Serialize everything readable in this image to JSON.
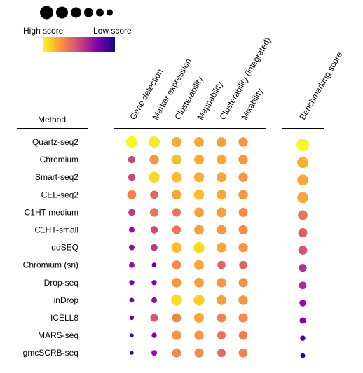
{
  "chart_data": {
    "type": "dot-matrix",
    "row_header": "Method",
    "methods": [
      "Quartz-seq2",
      "Chromium",
      "Smart-seq2",
      "CEL-seq2",
      "C1HT-medium",
      "C1HT-small",
      "ddSEQ",
      "Chromium (sn)",
      "Drop-seq",
      "inDrop",
      "ICELL8",
      "MARS-seq",
      "gmcSCRB-seq"
    ],
    "metrics": [
      "Gene detection",
      "Marker expression",
      "Clusterability",
      "Mappability",
      "Clusterability (integrated)",
      "Mixability"
    ],
    "summary_metric": "Benchmarking score",
    "scale": {
      "min": 0,
      "max": 1,
      "note": "higher value = higher score (larger, yellower dot)"
    },
    "scores": [
      [
        1.0,
        0.97,
        0.8,
        0.8,
        0.78,
        0.75
      ],
      [
        0.5,
        0.75,
        0.85,
        0.8,
        0.8,
        0.75
      ],
      [
        0.5,
        0.93,
        0.85,
        0.82,
        0.8,
        0.75
      ],
      [
        0.7,
        0.6,
        0.8,
        0.85,
        0.8,
        0.75
      ],
      [
        0.45,
        0.65,
        0.65,
        0.78,
        0.78,
        0.72
      ],
      [
        0.3,
        0.5,
        0.65,
        0.78,
        0.75,
        0.72
      ],
      [
        0.3,
        0.45,
        0.85,
        0.93,
        0.8,
        0.75
      ],
      [
        0.3,
        0.2,
        0.72,
        0.8,
        0.6,
        0.6
      ],
      [
        0.25,
        0.25,
        0.75,
        0.78,
        0.75,
        0.72
      ],
      [
        0.2,
        0.3,
        0.93,
        0.9,
        0.78,
        0.75
      ],
      [
        0.15,
        0.55,
        0.7,
        0.8,
        0.7,
        0.72
      ],
      [
        0.1,
        0.25,
        0.75,
        0.75,
        0.65,
        0.68
      ],
      [
        0.08,
        0.3,
        0.72,
        0.72,
        0.62,
        0.7
      ]
    ],
    "benchmark": [
      1.0,
      0.82,
      0.8,
      0.8,
      0.65,
      0.58,
      0.55,
      0.42,
      0.4,
      0.3,
      0.25,
      0.12,
      0.08
    ],
    "legend": {
      "size_circles": 6,
      "high_label": "High score",
      "low_label": "Low score"
    },
    "colors": {
      "colormap": [
        "#f0f921",
        "#fcce25",
        "#fca636",
        "#f2844b",
        "#e16462",
        "#cc4778",
        "#b12a90",
        "#8f0da4",
        "#6a00a8",
        "#41049d",
        "#0d0887"
      ],
      "text": "#000000",
      "rule": "#000000"
    }
  }
}
